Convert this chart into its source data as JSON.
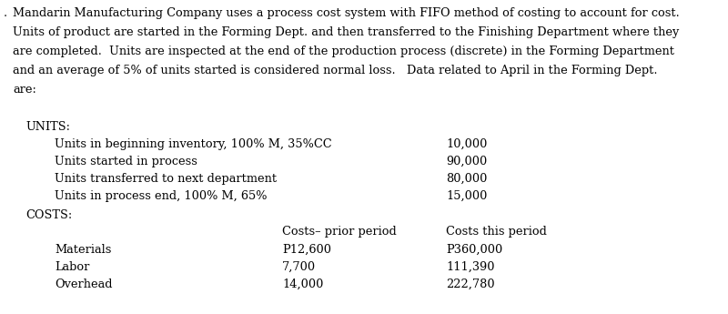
{
  "bg_color": "#ffffff",
  "text_color": "#000000",
  "bullet": "·",
  "para_lines": [
    "Mandarin Manufacturing Company uses a process cost system with FIFO method of costing to account for cost.",
    "Units of product are started in the Forming Dept. and then transferred to the Finishing Department where they",
    "are completed.  Units are inspected at the end of the production process (discrete) in the Forming Department",
    "and an average of 5% of units started is considered normal loss.   Data related to April in the Forming Dept.",
    "are:"
  ],
  "units_header": "UNITS:",
  "costs_header": "COSTS:",
  "unit_rows": [
    {
      "label": "Units in beginning inventory, 100% M, 35%CC",
      "value": "10,000"
    },
    {
      "label": "Units started in process",
      "value": "90,000"
    },
    {
      "label": "Units transferred to next department",
      "value": "80,000"
    },
    {
      "label": "Units in process end, 100% M, 65%",
      "value": "15,000"
    }
  ],
  "costs_col1_header": "Costs– prior period",
  "costs_col2_header": "Costs this period",
  "cost_rows": [
    {
      "label": "Materials",
      "prior": "P12,600",
      "current": "P360,000"
    },
    {
      "label": "Labor",
      "prior": "7,700",
      "current": "111,390"
    },
    {
      "label": "Overhead",
      "prior": "14,000",
      "current": "222,780"
    }
  ],
  "font_size": 9.3,
  "font_family": "DejaVu Serif",
  "fig_width": 8.0,
  "fig_height": 3.45,
  "dpi": 100
}
